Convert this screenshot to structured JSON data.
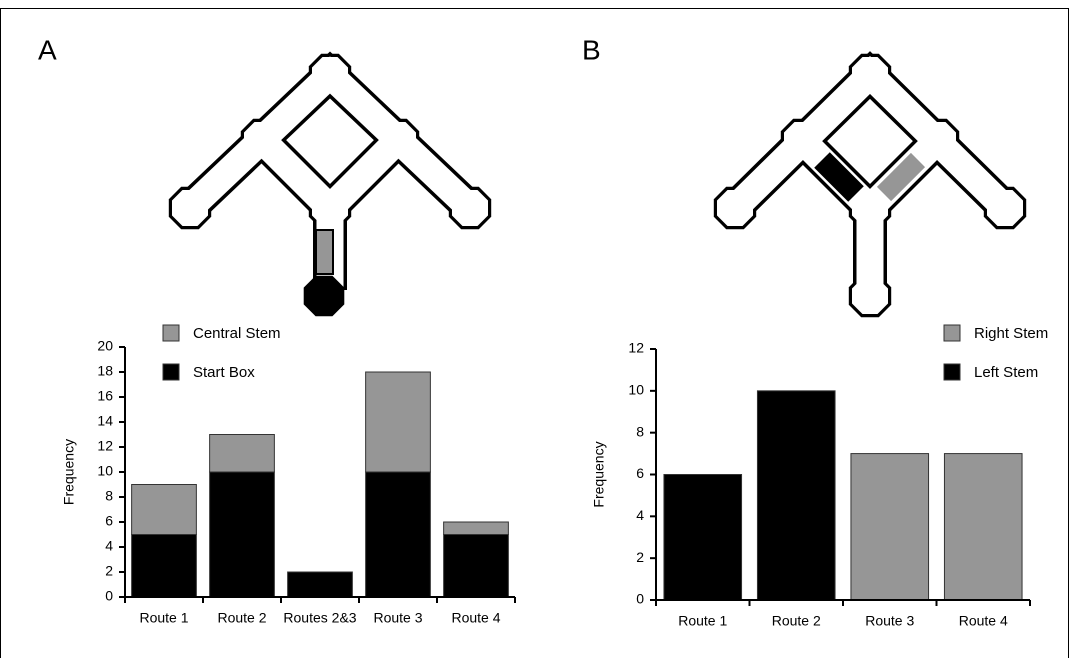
{
  "chart_data": [
    {
      "type": "bar",
      "stacked": true,
      "label": "A",
      "ylabel": "Frequency",
      "categories": [
        "Route 1",
        "Route 2",
        "Routes 2&3",
        "Route 3",
        "Route 4"
      ],
      "series": [
        {
          "name": "Central Stem",
          "color": "#969696",
          "values": [
            4,
            3,
            null,
            8,
            1
          ]
        },
        {
          "name": "Start Box",
          "color": "#000000",
          "values": [
            5,
            10,
            2,
            10,
            5
          ]
        }
      ],
      "ylim": [
        0,
        20
      ],
      "yticks": [
        0,
        2,
        4,
        6,
        8,
        10,
        12,
        14,
        16,
        18,
        20
      ],
      "legend": "top-left"
    },
    {
      "type": "bar",
      "stacked": true,
      "label": "B",
      "ylabel": "Frequency",
      "categories": [
        "Route 1",
        "Route 2",
        "Route 3",
        "Route 4"
      ],
      "series": [
        {
          "name": "Right Stem",
          "color": "#969696",
          "values": [
            null,
            null,
            7,
            7
          ]
        },
        {
          "name": "Left Stem",
          "color": "#000000",
          "values": [
            6,
            10,
            null,
            null
          ]
        }
      ],
      "ylim": [
        0,
        12
      ],
      "yticks": [
        0,
        2,
        4,
        6,
        8,
        10,
        12
      ],
      "legend": "top-right"
    }
  ]
}
